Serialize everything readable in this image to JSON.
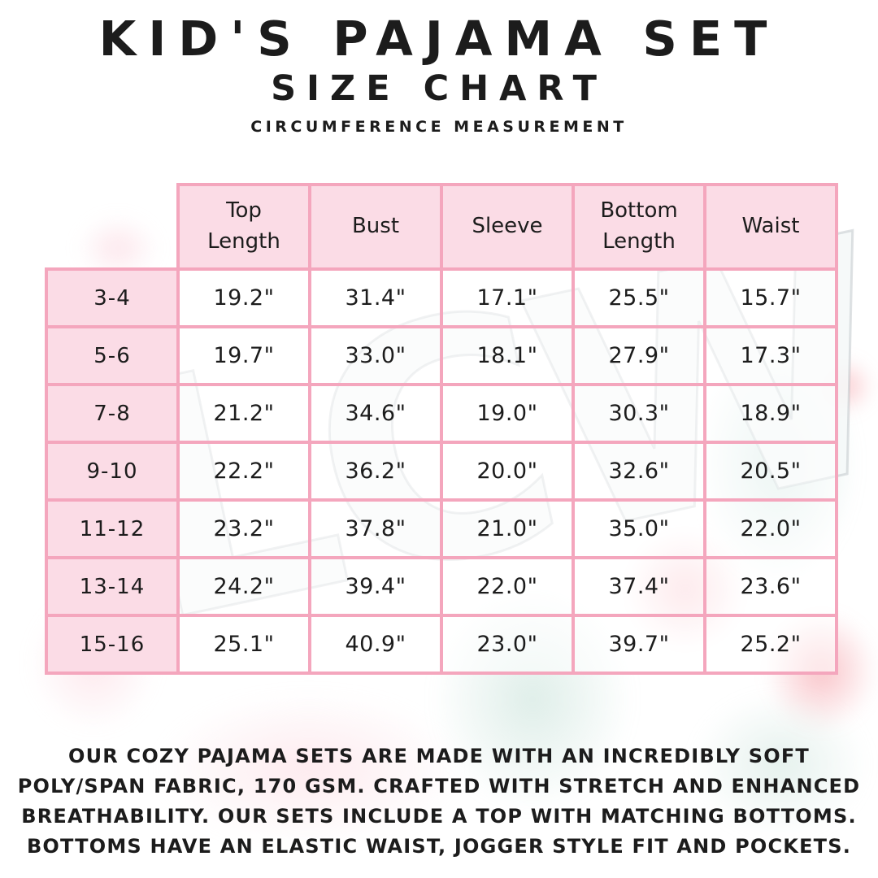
{
  "page": {
    "title": "KID'S PAJAMA SET",
    "subtitle": "SIZE CHART",
    "tagline": "CIRCUMFERENCE MEASUREMENT"
  },
  "colors": {
    "table_border": "#F4A6BD",
    "pink_cell": "#FBDCE6",
    "text": "#1C1C1C"
  },
  "watermark": {
    "text": "LCW"
  },
  "chart_data": {
    "type": "table",
    "title": "KID'S PAJAMA SET",
    "subtitle": "SIZE CHART",
    "tagline": "CIRCUMFERENCE MEASUREMENT",
    "columns": [
      "Top Length",
      "Bust",
      "Sleeve",
      "Bottom Length",
      "Waist"
    ],
    "rows": [
      {
        "size": "3-4",
        "values": [
          "19.2\"",
          "31.4\"",
          "17.1\"",
          "25.5\"",
          "15.7\""
        ]
      },
      {
        "size": "5-6",
        "values": [
          "19.7\"",
          "33.0\"",
          "18.1\"",
          "27.9\"",
          "17.3\""
        ]
      },
      {
        "size": "7-8",
        "values": [
          "21.2\"",
          "34.6\"",
          "19.0\"",
          "30.3\"",
          "18.9\""
        ]
      },
      {
        "size": "9-10",
        "values": [
          "22.2\"",
          "36.2\"",
          "20.0\"",
          "32.6\"",
          "20.5\""
        ]
      },
      {
        "size": "11-12",
        "values": [
          "23.2\"",
          "37.8\"",
          "21.0\"",
          "35.0\"",
          "22.0\""
        ]
      },
      {
        "size": "13-14",
        "values": [
          "24.2\"",
          "39.4\"",
          "22.0\"",
          "37.4\"",
          "23.6\""
        ]
      },
      {
        "size": "15-16",
        "values": [
          "25.1\"",
          "40.9\"",
          "23.0\"",
          "39.7\"",
          "25.2\""
        ]
      }
    ]
  },
  "description_lines": [
    "OUR COZY PAJAMA SETS ARE MADE WITH AN INCREDIBLY SOFT",
    "POLY/SPAN FABRIC, 170 GSM. CRAFTED WITH STRETCH AND ENHANCED",
    "BREATHABILITY. OUR SETS INCLUDE A TOP WITH MATCHING BOTTOMS.",
    "BOTTOMS HAVE AN ELASTIC WAIST, JOGGER STYLE FIT AND POCKETS."
  ]
}
